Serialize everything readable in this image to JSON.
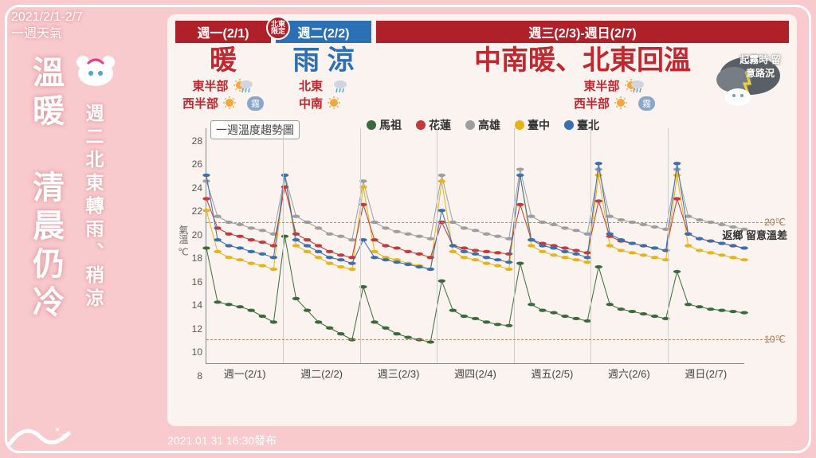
{
  "date_range": "2021/2/1-2/7",
  "date_sub": "一週天氣",
  "title_main": "溫暖　清晨仍冷",
  "title_sub": "週二北東轉雨、稍涼",
  "footer": "2021.01.31 16:30發布",
  "header": {
    "col1": "週一(2/1)",
    "col2": "週二(2/2)",
    "col2_badge": "北東限定",
    "col3": "週三(2/3)-週日(2/7)"
  },
  "summary": {
    "c1_big": "暖",
    "c2_big": "雨 涼",
    "c3_big": "中南暖、北東回溫",
    "c1_rows": [
      {
        "region": "東半部",
        "icon": "sun-rain",
        "fog": false
      },
      {
        "region": "西半部",
        "icon": "sun",
        "fog": true
      }
    ],
    "c2_rows": [
      {
        "region": "北東",
        "icon": "rain",
        "fog": false
      },
      {
        "region": "中南",
        "icon": "sun",
        "fog": false
      }
    ],
    "c3_rows": [
      {
        "region": "東半部",
        "icon": "sun-rain",
        "fog": false
      },
      {
        "region": "西半部",
        "icon": "sun",
        "fog": true
      }
    ],
    "storm_note": "起霧時\n留意路況",
    "fog_label": "霧"
  },
  "chart": {
    "title": "一週溫度趨勢圖",
    "y_label": "氣溫 ℃",
    "ylim": [
      8,
      28
    ],
    "ytick_step": 2,
    "x_labels": [
      "週一(2/1)",
      "週二(2/2)",
      "週三(2/3)",
      "週四(2/4)",
      "週五(2/5)",
      "週六(2/6)",
      "週日(2/7)"
    ],
    "ref_lines": [
      20,
      10
    ],
    "ref_suffix": "℃",
    "right_note": "返鄉\n留意溫差",
    "grid_color": "#cccccc",
    "ref_color": "#b7896a",
    "background": "#faf3f0",
    "legend": [
      {
        "name": "馬祖",
        "color": "#3b6b3a"
      },
      {
        "name": "花蓮",
        "color": "#c23a3a"
      },
      {
        "name": "高雄",
        "color": "#9e9e9e"
      },
      {
        "name": "臺中",
        "color": "#e7b416"
      },
      {
        "name": "臺北",
        "color": "#3a6fb0"
      }
    ],
    "series": {
      "matsu": [
        17.8,
        13.2,
        13.0,
        12.8,
        12.5,
        12.0,
        11.5,
        18.8,
        13.5,
        12.5,
        11.5,
        11.0,
        10.5,
        10.0,
        14.5,
        11.5,
        11.0,
        10.5,
        10.2,
        10.0,
        9.8,
        15.0,
        12.5,
        12.0,
        11.8,
        11.5,
        11.3,
        11.2,
        16.5,
        13.0,
        12.5,
        12.3,
        12.0,
        11.8,
        11.6,
        16.2,
        13.0,
        12.6,
        12.4,
        12.2,
        12.0,
        11.8,
        15.8,
        13.0,
        12.8,
        12.6,
        12.5,
        12.4,
        12.3
      ],
      "hualien": [
        22.0,
        19.5,
        19.0,
        18.8,
        18.5,
        18.3,
        18.0,
        23.0,
        19.0,
        18.5,
        18.0,
        17.5,
        17.2,
        17.0,
        21.5,
        18.5,
        18.0,
        17.8,
        17.5,
        17.3,
        17.0,
        20.0,
        18.0,
        17.8,
        17.6,
        17.5,
        17.4,
        17.3,
        21.5,
        18.5,
        18.2,
        18.0,
        17.8,
        17.6,
        17.4,
        21.8,
        18.8,
        18.4,
        18.2,
        18.0,
        17.8,
        17.6,
        22.0,
        19.0,
        18.6,
        18.4,
        18.2,
        18.0,
        17.8
      ],
      "kaohsiung": [
        23.5,
        20.5,
        20.0,
        19.8,
        19.5,
        19.3,
        19.0,
        24.0,
        20.5,
        20.0,
        19.5,
        19.0,
        18.8,
        18.5,
        23.5,
        20.0,
        19.5,
        19.2,
        19.0,
        18.8,
        18.6,
        24.0,
        20.0,
        19.5,
        19.3,
        19.0,
        18.8,
        18.6,
        24.5,
        20.5,
        20.0,
        19.8,
        19.5,
        19.3,
        19.0,
        24.5,
        20.5,
        20.2,
        20.0,
        19.8,
        19.6,
        19.4,
        24.5,
        20.5,
        20.2,
        20.0,
        19.8,
        19.6,
        19.4
      ],
      "taichung": [
        21.0,
        17.5,
        17.0,
        16.8,
        16.5,
        16.3,
        16.0,
        24.0,
        18.0,
        17.5,
        17.0,
        16.5,
        16.2,
        16.0,
        23.0,
        17.5,
        17.0,
        16.8,
        16.5,
        16.3,
        16.0,
        23.5,
        17.5,
        17.0,
        16.8,
        16.5,
        16.3,
        16.0,
        24.0,
        18.0,
        17.5,
        17.2,
        17.0,
        16.8,
        16.6,
        24.0,
        18.0,
        17.6,
        17.4,
        17.2,
        17.0,
        16.8,
        24.0,
        18.0,
        17.6,
        17.4,
        17.2,
        17.0,
        16.8
      ],
      "taipei": [
        24.0,
        18.5,
        18.0,
        17.8,
        17.5,
        17.3,
        17.0,
        24.0,
        18.5,
        18.0,
        17.5,
        17.0,
        16.8,
        16.5,
        18.5,
        17.0,
        16.8,
        16.6,
        16.4,
        16.2,
        16.0,
        21.0,
        18.0,
        17.5,
        17.3,
        17.0,
        16.8,
        16.6,
        24.0,
        18.5,
        18.0,
        17.8,
        17.5,
        17.3,
        17.0,
        25.0,
        19.0,
        18.5,
        18.2,
        18.0,
        17.8,
        17.6,
        25.0,
        19.0,
        18.6,
        18.4,
        18.2,
        18.0,
        17.8
      ]
    },
    "series_colors": {
      "matsu": "#3b6b3a",
      "hualien": "#c23a3a",
      "kaohsiung": "#9e9e9e",
      "taichung": "#e7b416",
      "taipei": "#3a6fb0"
    },
    "line_width": 2,
    "marker_radius": 2
  }
}
